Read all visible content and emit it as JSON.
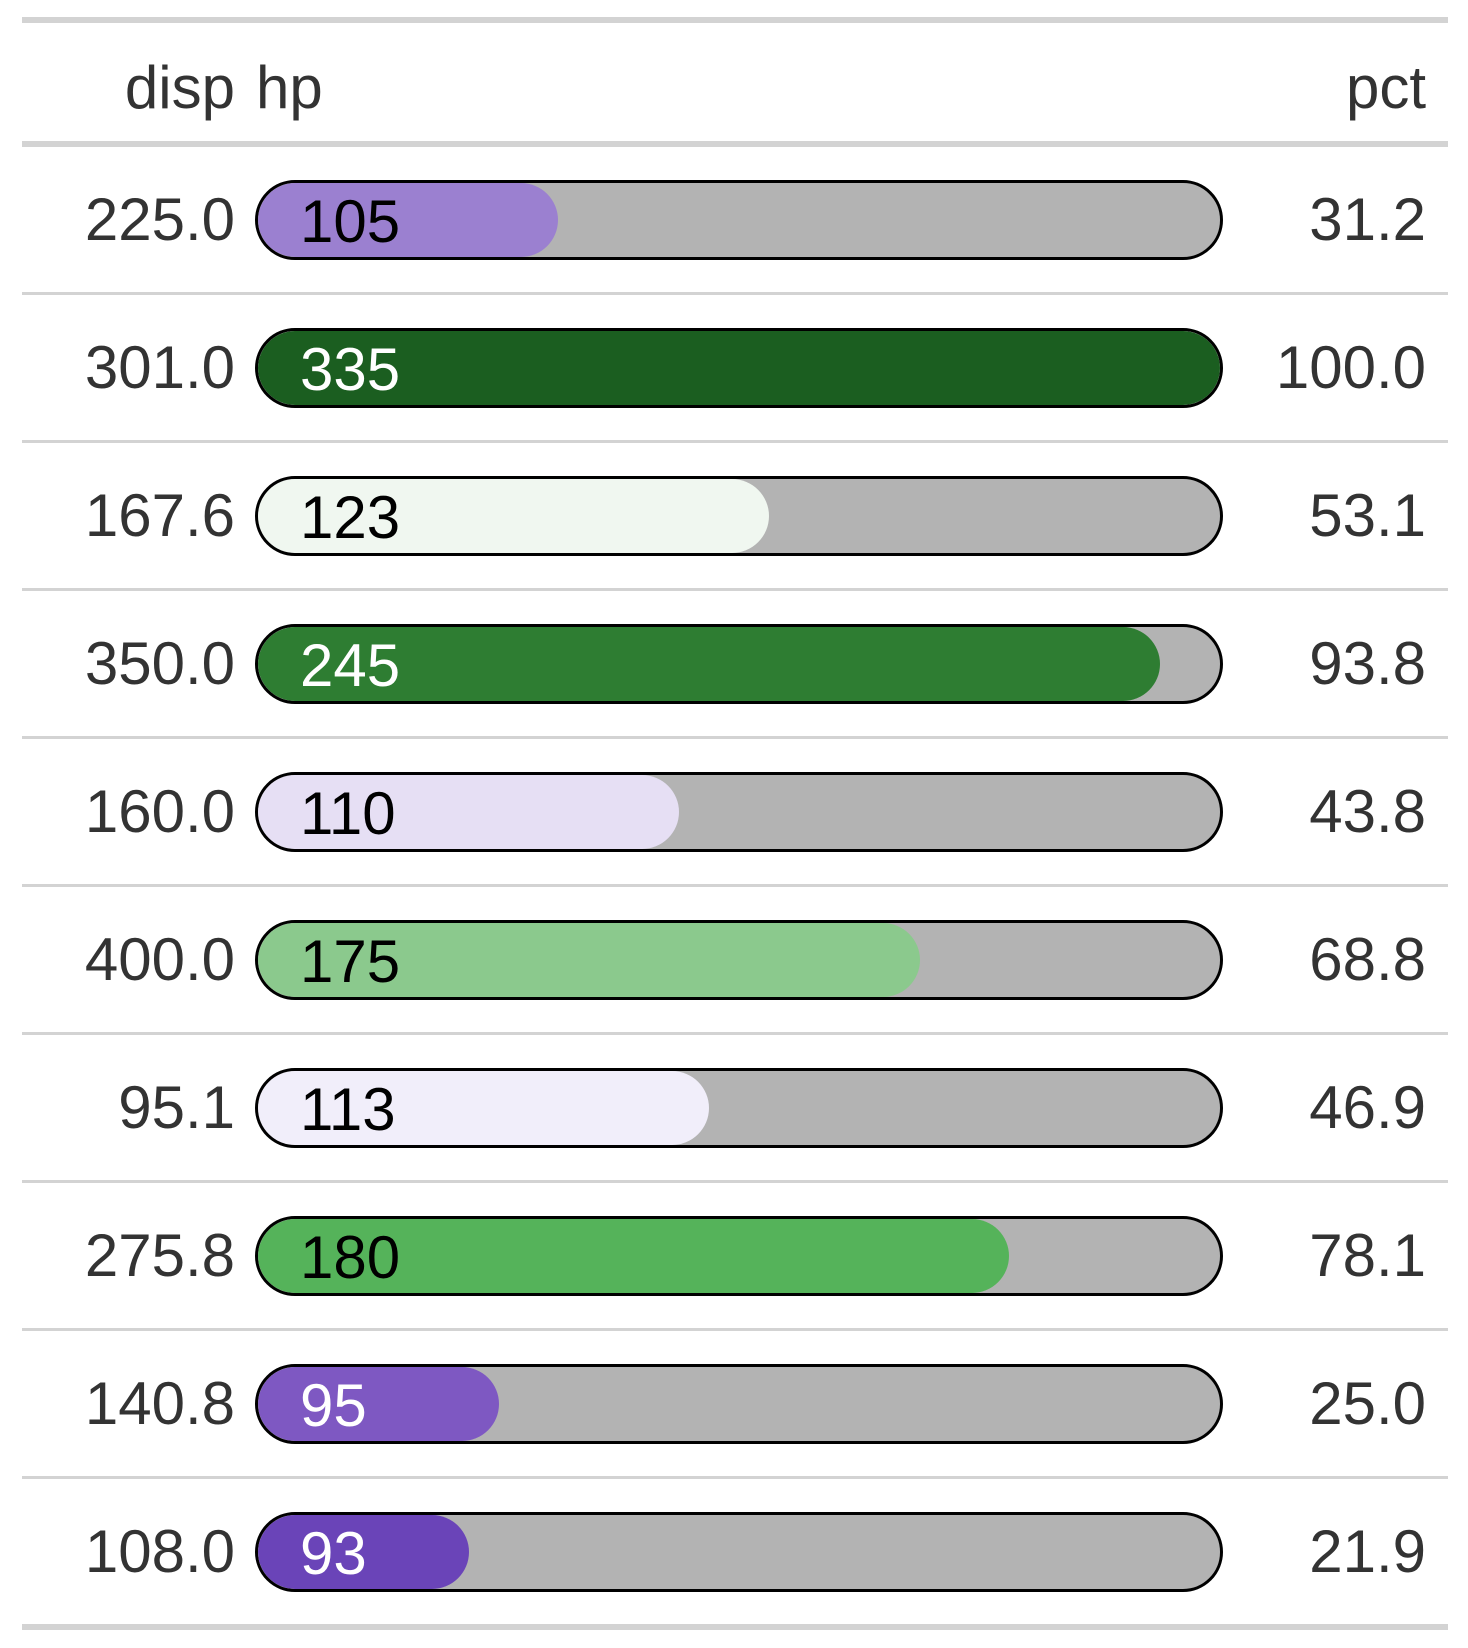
{
  "chart_data": {
    "type": "table",
    "columns": [
      "disp",
      "hp",
      "pct"
    ],
    "rows": [
      {
        "disp": "225.0",
        "hp": 105,
        "pct": "31.2",
        "fill_color": "#9b80d0",
        "text_color": "#000000"
      },
      {
        "disp": "301.0",
        "hp": 335,
        "pct": "100.0",
        "fill_color": "#1b5e20",
        "text_color": "#ffffff"
      },
      {
        "disp": "167.6",
        "hp": 123,
        "pct": "53.1",
        "fill_color": "#f0f7f0",
        "text_color": "#000000"
      },
      {
        "disp": "350.0",
        "hp": 245,
        "pct": "93.8",
        "fill_color": "#2e7d32",
        "text_color": "#ffffff"
      },
      {
        "disp": "160.0",
        "hp": 110,
        "pct": "43.8",
        "fill_color": "#e6dff4",
        "text_color": "#000000"
      },
      {
        "disp": "400.0",
        "hp": 175,
        "pct": "68.8",
        "fill_color": "#8bc98d",
        "text_color": "#000000"
      },
      {
        "disp": "95.1",
        "hp": 113,
        "pct": "46.9",
        "fill_color": "#f1eefa",
        "text_color": "#000000"
      },
      {
        "disp": "275.8",
        "hp": 180,
        "pct": "78.1",
        "fill_color": "#55b35a",
        "text_color": "#000000"
      },
      {
        "disp": "140.8",
        "hp": 95,
        "pct": "25.0",
        "fill_color": "#7e58c2",
        "text_color": "#ffffff"
      },
      {
        "disp": "108.0",
        "hp": 93,
        "pct": "21.9",
        "fill_color": "#6a44b8",
        "text_color": "#ffffff"
      }
    ],
    "bar_track_color": "#b3b3b3"
  }
}
